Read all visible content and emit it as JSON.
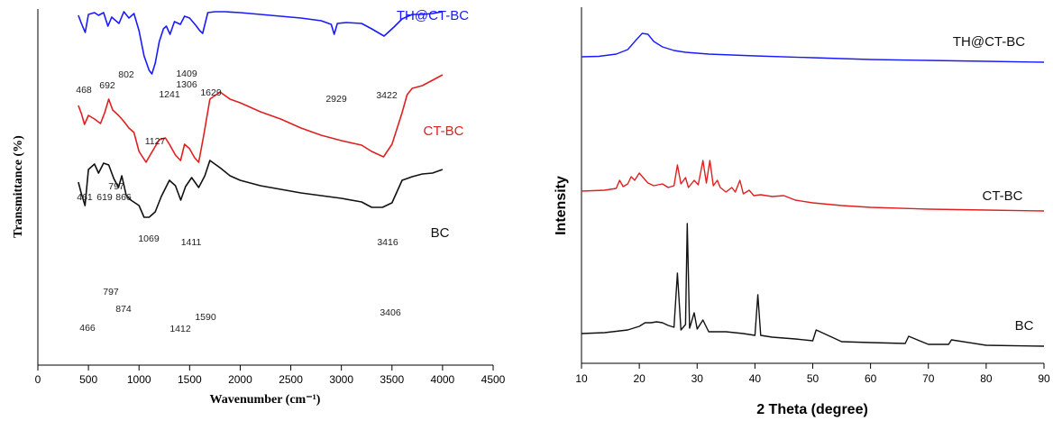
{
  "chart_data": [
    {
      "type": "line",
      "xlabel": "Wavenumber (cm⁻¹)",
      "ylabel": "Transmittance (%)",
      "xlim": [
        0,
        4500
      ],
      "xticks": [
        0,
        500,
        1000,
        1500,
        2000,
        2500,
        3000,
        3500,
        4000,
        4500
      ],
      "series": [
        {
          "name": "TH@CT-BC",
          "color": "#1a1aff",
          "x": [
            400,
            430,
            468,
            500,
            560,
            600,
            650,
            692,
            730,
            760,
            802,
            850,
            900,
            950,
            1000,
            1050,
            1100,
            1127,
            1160,
            1200,
            1241,
            1270,
            1306,
            1350,
            1409,
            1450,
            1500,
            1560,
            1600,
            1629,
            1680,
            1750,
            1850,
            2000,
            2200,
            2400,
            2600,
            2800,
            2900,
            2929,
            2960,
            3050,
            3200,
            3300,
            3422,
            3520,
            3600,
            3700,
            3800,
            3900,
            4000
          ],
          "y": [
            7,
            16,
            26,
            6,
            4,
            7,
            4,
            19,
            9,
            12,
            16,
            3,
            10,
            5,
            24,
            52,
            68,
            72,
            60,
            36,
            22,
            19,
            28,
            14,
            17,
            8,
            10,
            18,
            24,
            27,
            4,
            3,
            3,
            4,
            6,
            8,
            10,
            13,
            17,
            28,
            16,
            15,
            16,
            22,
            30,
            20,
            11,
            6,
            6,
            5,
            3
          ]
        },
        {
          "name": "CT-BC",
          "color": "#e02020",
          "x": [
            400,
            430,
            461,
            500,
            560,
            619,
            660,
            700,
            740,
            797,
            830,
            866,
            900,
            950,
            1000,
            1069,
            1120,
            1200,
            1260,
            1300,
            1360,
            1411,
            1450,
            1500,
            1550,
            1590,
            1640,
            1700,
            1800,
            1900,
            2000,
            2200,
            2400,
            2600,
            2800,
            3000,
            3200,
            3300,
            3416,
            3500,
            3600,
            3650,
            3700,
            3800,
            3900,
            4000
          ],
          "y": [
            107,
            116,
            128,
            118,
            122,
            127,
            115,
            100,
            112,
            118,
            122,
            127,
            132,
            137,
            158,
            170,
            160,
            145,
            143,
            150,
            162,
            168,
            150,
            155,
            165,
            170,
            140,
            100,
            92,
            100,
            104,
            114,
            122,
            132,
            140,
            146,
            151,
            158,
            164,
            150,
            115,
            95,
            88,
            85,
            79,
            73
          ]
        },
        {
          "name": "BC",
          "color": "#111111",
          "x": [
            400,
            430,
            466,
            500,
            560,
            600,
            650,
            700,
            750,
            797,
            830,
            874,
            920,
            960,
            1000,
            1050,
            1100,
            1160,
            1220,
            1300,
            1360,
            1412,
            1460,
            1520,
            1590,
            1650,
            1700,
            1800,
            1900,
            2000,
            2200,
            2400,
            2600,
            2800,
            3000,
            3200,
            3300,
            3406,
            3500,
            3600,
            3700,
            3800,
            3900,
            4000
          ],
          "y": [
            192,
            205,
            218,
            178,
            172,
            182,
            171,
            173,
            188,
            198,
            185,
            207,
            212,
            215,
            218,
            231,
            231,
            225,
            208,
            190,
            196,
            212,
            197,
            187,
            198,
            185,
            168,
            176,
            185,
            190,
            196,
            200,
            204,
            207,
            210,
            214,
            220,
            220,
            215,
            190,
            186,
            183,
            182,
            178
          ]
        }
      ],
      "annotations": [
        {
          "text": "468",
          "series": "TH@CT-BC"
        },
        {
          "text": "692",
          "series": "TH@CT-BC"
        },
        {
          "text": "802",
          "series": "TH@CT-BC"
        },
        {
          "text": "1127",
          "series": "TH@CT-BC"
        },
        {
          "text": "1241",
          "series": "TH@CT-BC"
        },
        {
          "text": "1306",
          "series": "TH@CT-BC"
        },
        {
          "text": "1409",
          "series": "TH@CT-BC"
        },
        {
          "text": "1629",
          "series": "TH@CT-BC"
        },
        {
          "text": "2929",
          "series": "TH@CT-BC"
        },
        {
          "text": "3422",
          "series": "TH@CT-BC"
        },
        {
          "text": "461",
          "series": "CT-BC"
        },
        {
          "text": "619",
          "series": "CT-BC"
        },
        {
          "text": "797",
          "series": "CT-BC"
        },
        {
          "text": "866",
          "series": "CT-BC"
        },
        {
          "text": "1069",
          "series": "CT-BC"
        },
        {
          "text": "1411",
          "series": "CT-BC"
        },
        {
          "text": "3416",
          "series": "CT-BC"
        },
        {
          "text": "466",
          "series": "BC"
        },
        {
          "text": "797",
          "series": "BC"
        },
        {
          "text": "874",
          "series": "BC"
        },
        {
          "text": "1412",
          "series": "BC"
        },
        {
          "text": "1590",
          "series": "BC"
        },
        {
          "text": "3406",
          "series": "BC"
        }
      ],
      "grid": false,
      "legend": "labels next to curves"
    },
    {
      "type": "line",
      "xlabel": "2 Theta (degree)",
      "ylabel": "Intensity",
      "xlim": [
        10,
        90
      ],
      "xticks": [
        10,
        20,
        30,
        40,
        50,
        60,
        70,
        80,
        90
      ],
      "series": [
        {
          "name": "TH@CT-BC",
          "color": "#1a1aff",
          "x": [
            10,
            13,
            16,
            18,
            19.5,
            20.5,
            21.5,
            22.5,
            24,
            26,
            28,
            32,
            40,
            50,
            60,
            70,
            80,
            90
          ],
          "y": [
            63,
            62.5,
            60,
            55,
            44,
            37,
            38,
            46,
            52,
            56,
            58,
            60,
            62,
            64,
            66,
            67,
            68,
            69
          ]
        },
        {
          "name": "CT-BC",
          "color": "#e02020",
          "x": [
            10,
            14,
            16,
            16.6,
            17.2,
            18,
            18.6,
            19.2,
            20,
            20.8,
            21.5,
            22.5,
            24,
            25,
            26,
            26.6,
            27.2,
            28,
            28.5,
            29.5,
            30.2,
            31,
            31.6,
            32.2,
            32.8,
            33.5,
            34,
            35,
            36,
            36.6,
            37.4,
            38,
            39,
            39.8,
            41,
            43,
            45,
            47,
            50,
            55,
            60,
            70,
            80,
            90
          ],
          "y": [
            212,
            211,
            209,
            200,
            207,
            204,
            196,
            200,
            192,
            198,
            203,
            206,
            204,
            208,
            206,
            183,
            204,
            197,
            208,
            200,
            205,
            178,
            203,
            178,
            206,
            200,
            208,
            213,
            208,
            213,
            200,
            215,
            211,
            217,
            216,
            218,
            217,
            222,
            225,
            228,
            230,
            232,
            233,
            234
          ]
        },
        {
          "name": "BC",
          "color": "#111111",
          "x": [
            10,
            14,
            18,
            20,
            21,
            22,
            23,
            24,
            25,
            26,
            26.6,
            27.2,
            28,
            28.3,
            28.7,
            29.5,
            30,
            31,
            32,
            35,
            38,
            40,
            40.5,
            41,
            43,
            47,
            50,
            50.6,
            55,
            60,
            66,
            66.6,
            70,
            73.5,
            74,
            80,
            90
          ],
          "y": [
            370,
            369,
            366,
            362,
            358,
            358,
            357,
            358,
            361,
            363,
            303,
            366,
            360,
            248,
            364,
            347,
            365,
            355,
            368,
            368,
            370,
            372,
            327,
            372,
            374,
            376,
            378,
            366,
            379,
            380,
            381,
            373,
            382,
            382,
            377,
            383,
            384
          ]
        }
      ],
      "grid": false,
      "legend": "labels next to curves"
    }
  ]
}
